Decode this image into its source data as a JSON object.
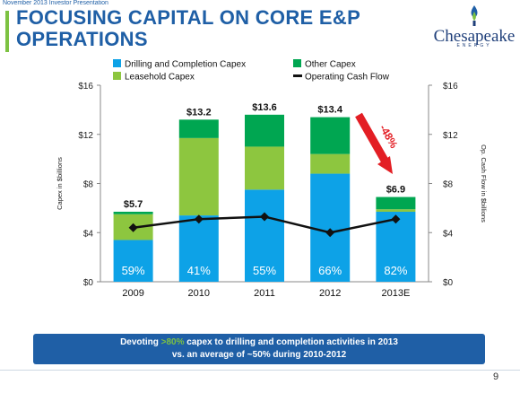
{
  "header": {
    "note": "November 2013 Investor Presentation",
    "title": "FOCUSING CAPITAL ON CORE E&P OPERATIONS"
  },
  "logo": {
    "word": "Chesapeake",
    "sub": "ENERGY"
  },
  "chart_data": {
    "type": "bar",
    "stacked": true,
    "categories": [
      "2009",
      "2010",
      "2011",
      "2012",
      "2013E"
    ],
    "series": [
      {
        "name": "Drilling and Completion Capex",
        "color": "#0da2e7",
        "values": [
          3.4,
          5.4,
          7.5,
          8.8,
          5.7
        ]
      },
      {
        "name": "Leasehold Capex",
        "color": "#8dc63f",
        "values": [
          2.1,
          6.3,
          3.5,
          1.6,
          0.2
        ]
      },
      {
        "name": "Other Capex",
        "color": "#00a651",
        "values": [
          0.2,
          1.5,
          2.6,
          3.0,
          1.0
        ]
      }
    ],
    "line_series": {
      "name": "Operating Cash Flow",
      "color": "#111111",
      "values": [
        4.4,
        5.1,
        5.3,
        4.0,
        5.1
      ]
    },
    "totals": [
      "$5.7",
      "$13.2",
      "$13.6",
      "$13.4",
      "$6.9"
    ],
    "pct_labels": [
      "59%",
      "41%",
      "55%",
      "66%",
      "82%"
    ],
    "ylabel_left": "Capex in $billions",
    "ylabel_right": "Op. Cash Flow in $billions",
    "ylim": [
      0,
      16
    ],
    "yticks": [
      0,
      4,
      8,
      12,
      16
    ],
    "ytick_labels": [
      "$0",
      "$4",
      "$8",
      "$12",
      "$16"
    ],
    "annotation": "-48%",
    "legend": {
      "placement": "top",
      "items": [
        "Drilling and Completion Capex",
        "Other Capex",
        "Leasehold Capex",
        "Operating Cash Flow"
      ]
    }
  },
  "callout": {
    "pre": "Devoting ",
    "highlight": ">80%",
    "post": " capex to drilling and completion activities in 2013",
    "line2": "vs. an average of ~50% during 2010-2012"
  },
  "page_number": "9"
}
